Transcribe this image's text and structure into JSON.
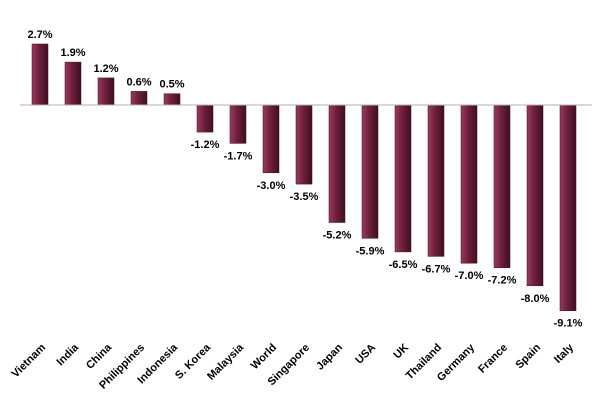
{
  "chart_data": {
    "type": "bar",
    "categories": [
      "Vietnam",
      "India",
      "China",
      "Philippines",
      "Indonesia",
      "S. Korea",
      "Malaysia",
      "World",
      "Singapore",
      "Japan",
      "USA",
      "UK",
      "Thailand",
      "Germany",
      "France",
      "Spain",
      "Italy"
    ],
    "values": [
      2.7,
      1.9,
      1.2,
      0.6,
      0.5,
      -1.2,
      -1.7,
      -3.0,
      -3.5,
      -5.2,
      -5.9,
      -6.5,
      -6.7,
      -7.0,
      -7.2,
      -8.0,
      -9.1
    ],
    "value_labels": [
      "2.7%",
      "1.9%",
      "1.2%",
      "0.6%",
      "0.5%",
      "-1.2%",
      "-1.7%",
      "-3.0%",
      "-3.5%",
      "-5.2%",
      "-5.9%",
      "-6.5%",
      "-6.7%",
      "-7.0%",
      "-7.2%",
      "-8.0%",
      "-9.1%"
    ],
    "title": "",
    "xlabel": "",
    "ylabel": "",
    "ylim": [
      -9.1,
      2.7
    ],
    "grid": false,
    "legend": "none",
    "colors": {
      "bar": "#6e1f3c",
      "bar_highlight": "#9a3a5c",
      "bar_shadow": "#3f0f22",
      "axis": "#b0b0b0"
    }
  }
}
